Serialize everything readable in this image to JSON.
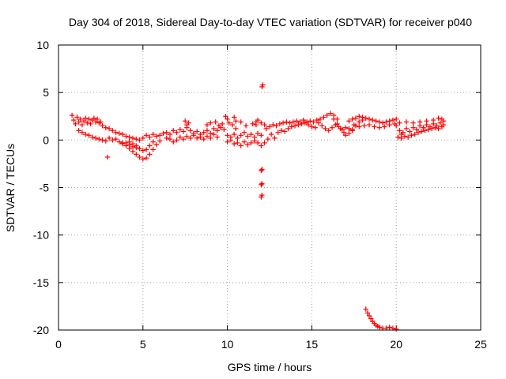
{
  "chart_data": {
    "type": "scatter",
    "title": "Day 304 of 2018, Sidereal Day-to-day VTEC variation (SDTVAR) for receiver p040",
    "xlabel": "GPS time / hours",
    "ylabel": "SDTVAR / TECUs",
    "xlim": [
      0,
      25
    ],
    "ylim": [
      -20,
      10
    ],
    "xticks": [
      0,
      5,
      10,
      15,
      20,
      25
    ],
    "yticks": [
      10,
      5,
      0,
      -5,
      -10,
      -15,
      -20
    ],
    "grid": true,
    "marker": "+",
    "color": "#ff0000",
    "series": [
      {
        "name": "p040",
        "points": [
          [
            0.8,
            2.6
          ],
          [
            0.9,
            2.1
          ],
          [
            1.0,
            1.7
          ],
          [
            1.1,
            2.4
          ],
          [
            1.2,
            1.9
          ],
          [
            1.3,
            2.2
          ],
          [
            1.4,
            1.6
          ],
          [
            1.5,
            2.0
          ],
          [
            1.6,
            2.3
          ],
          [
            1.7,
            1.8
          ],
          [
            1.8,
            2.2
          ],
          [
            1.9,
            1.7
          ],
          [
            2.0,
            2.1
          ],
          [
            2.1,
            2.3
          ],
          [
            2.2,
            1.9
          ],
          [
            2.3,
            2.2
          ],
          [
            2.4,
            1.8
          ],
          [
            2.5,
            1.9
          ],
          [
            2.6,
            1.5
          ],
          [
            1.2,
            1.0
          ],
          [
            1.4,
            0.8
          ],
          [
            1.6,
            0.6
          ],
          [
            1.8,
            0.5
          ],
          [
            2.0,
            0.3
          ],
          [
            2.2,
            0.2
          ],
          [
            2.4,
            0.1
          ],
          [
            2.6,
            0.0
          ],
          [
            2.8,
            -0.1
          ],
          [
            3.0,
            0.2
          ],
          [
            3.2,
            0.0
          ],
          [
            3.4,
            0.1
          ],
          [
            3.6,
            -0.2
          ],
          [
            3.8,
            -0.4
          ],
          [
            4.0,
            -0.3
          ],
          [
            4.2,
            -0.5
          ],
          [
            4.4,
            -0.7
          ],
          [
            4.6,
            -0.8
          ],
          [
            2.8,
            1.3
          ],
          [
            3.0,
            1.2
          ],
          [
            3.2,
            1.0
          ],
          [
            3.4,
            0.8
          ],
          [
            3.6,
            0.7
          ],
          [
            3.8,
            0.6
          ],
          [
            4.0,
            0.4
          ],
          [
            4.2,
            0.3
          ],
          [
            4.4,
            0.2
          ],
          [
            4.6,
            0.1
          ],
          [
            4.8,
            0.0
          ],
          [
            5.0,
            0.2
          ],
          [
            3.8,
            -0.3
          ],
          [
            4.0,
            -0.6
          ],
          [
            4.2,
            -0.9
          ],
          [
            4.4,
            -1.2
          ],
          [
            4.6,
            -1.5
          ],
          [
            4.8,
            -1.8
          ],
          [
            5.0,
            -2.0
          ],
          [
            5.2,
            -1.9
          ],
          [
            5.4,
            -1.5
          ],
          [
            5.6,
            -1.0
          ],
          [
            5.8,
            -0.5
          ],
          [
            6.0,
            -0.1
          ],
          [
            4.2,
            -0.2
          ],
          [
            4.4,
            -0.4
          ],
          [
            4.6,
            -0.6
          ],
          [
            4.8,
            -0.9
          ],
          [
            5.0,
            -1.1
          ],
          [
            5.2,
            -1.0
          ],
          [
            5.4,
            -0.6
          ],
          [
            5.6,
            -0.2
          ],
          [
            2.9,
            -1.8
          ],
          [
            5.2,
            0.5
          ],
          [
            5.4,
            0.3
          ],
          [
            5.6,
            0.6
          ],
          [
            5.8,
            0.4
          ],
          [
            6.0,
            0.5
          ],
          [
            6.2,
            0.7
          ],
          [
            6.4,
            0.8
          ],
          [
            6.6,
            0.6
          ],
          [
            6.8,
            1.0
          ],
          [
            7.0,
            0.8
          ],
          [
            7.2,
            1.1
          ],
          [
            7.4,
            0.9
          ],
          [
            7.6,
            1.3
          ],
          [
            7.8,
            1.0
          ],
          [
            8.0,
            0.7
          ],
          [
            8.2,
            0.9
          ],
          [
            8.4,
            0.6
          ],
          [
            8.6,
            0.8
          ],
          [
            8.8,
            1.0
          ],
          [
            9.0,
            0.7
          ],
          [
            9.2,
            1.2
          ],
          [
            9.4,
            1.0
          ],
          [
            9.6,
            1.3
          ],
          [
            9.8,
            1.1
          ],
          [
            6.4,
            0.2
          ],
          [
            6.6,
            0.1
          ],
          [
            6.8,
            -0.2
          ],
          [
            7.0,
            0.0
          ],
          [
            7.2,
            0.3
          ],
          [
            7.4,
            0.1
          ],
          [
            7.6,
            0.4
          ],
          [
            7.8,
            0.2
          ],
          [
            8.0,
            0.5
          ],
          [
            8.2,
            0.2
          ],
          [
            8.4,
            0.3
          ],
          [
            8.6,
            0.1
          ],
          [
            8.8,
            0.4
          ],
          [
            9.0,
            0.2
          ],
          [
            9.2,
            0.6
          ],
          [
            9.4,
            0.3
          ],
          [
            7.5,
            2.0
          ],
          [
            7.6,
            1.6
          ],
          [
            7.7,
            1.8
          ],
          [
            8.8,
            1.6
          ],
          [
            9.0,
            1.8
          ],
          [
            9.3,
            1.9
          ],
          [
            9.5,
            1.5
          ],
          [
            9.7,
            1.7
          ],
          [
            10.0,
            0.5
          ],
          [
            10.2,
            0.3
          ],
          [
            10.4,
            0.6
          ],
          [
            10.6,
            0.2
          ],
          [
            10.8,
            0.5
          ],
          [
            11.0,
            0.8
          ],
          [
            11.2,
            0.4
          ],
          [
            11.4,
            0.6
          ],
          [
            11.6,
            0.3
          ],
          [
            11.8,
            0.7
          ],
          [
            12.0,
            0.5
          ],
          [
            10.0,
            -0.2
          ],
          [
            10.2,
            0.0
          ],
          [
            10.4,
            -0.4
          ],
          [
            10.6,
            -0.3
          ],
          [
            10.8,
            -0.6
          ],
          [
            11.0,
            -0.2
          ],
          [
            11.2,
            -0.5
          ],
          [
            11.4,
            -0.3
          ],
          [
            11.6,
            -0.1
          ],
          [
            11.8,
            -0.3
          ],
          [
            12.0,
            -0.6
          ],
          [
            9.9,
            2.5
          ],
          [
            10.0,
            2.2
          ],
          [
            10.1,
            1.8
          ],
          [
            10.3,
            1.6
          ],
          [
            10.5,
            1.2
          ],
          [
            10.8,
            1.9
          ],
          [
            11.1,
            1.5
          ],
          [
            11.5,
            1.7
          ],
          [
            11.7,
            1.6
          ],
          [
            12.0,
            1.8
          ],
          [
            12.2,
            1.6
          ],
          [
            10.4,
            2.4
          ],
          [
            10.5,
            2.0
          ],
          [
            11.7,
            1.9
          ],
          [
            11.8,
            2.1
          ],
          [
            12.1,
            5.8
          ],
          [
            12.05,
            5.6
          ],
          [
            12.0,
            -3.2
          ],
          [
            12.05,
            -3.1
          ],
          [
            12.0,
            -4.7
          ],
          [
            12.05,
            -4.6
          ],
          [
            12.0,
            -6.0
          ],
          [
            12.05,
            -5.8
          ],
          [
            12.2,
            -0.3
          ],
          [
            12.4,
            0.1
          ],
          [
            12.6,
            0.6
          ],
          [
            12.8,
            0.2
          ],
          [
            13.0,
            0.8
          ],
          [
            13.2,
            1.0
          ],
          [
            13.4,
            0.9
          ],
          [
            13.6,
            1.2
          ],
          [
            13.8,
            1.4
          ],
          [
            14.0,
            1.5
          ],
          [
            14.2,
            1.6
          ],
          [
            14.4,
            1.7
          ],
          [
            14.6,
            1.8
          ],
          [
            14.8,
            1.6
          ],
          [
            15.0,
            1.4
          ],
          [
            15.2,
            1.3
          ],
          [
            12.3,
            1.2
          ],
          [
            12.5,
            1.4
          ],
          [
            12.7,
            1.6
          ],
          [
            12.9,
            1.5
          ],
          [
            13.1,
            1.7
          ],
          [
            13.3,
            1.8
          ],
          [
            13.5,
            1.9
          ],
          [
            13.7,
            1.8
          ],
          [
            13.9,
            1.9
          ],
          [
            14.1,
            2.0
          ],
          [
            14.3,
            1.9
          ],
          [
            14.5,
            2.1
          ],
          [
            14.7,
            1.9
          ],
          [
            14.9,
            2.0
          ],
          [
            15.1,
            1.9
          ],
          [
            15.3,
            2.1
          ],
          [
            15.5,
            2.2
          ],
          [
            15.7,
            2.4
          ],
          [
            15.9,
            2.6
          ],
          [
            16.1,
            2.8
          ],
          [
            16.3,
            2.6
          ],
          [
            16.5,
            2.2
          ],
          [
            15.4,
            1.8
          ],
          [
            15.6,
            1.5
          ],
          [
            15.8,
            1.2
          ],
          [
            16.0,
            1.0
          ],
          [
            16.2,
            1.3
          ],
          [
            16.4,
            1.6
          ],
          [
            16.6,
            1.4
          ],
          [
            16.8,
            1.1
          ],
          [
            17.0,
            1.3
          ],
          [
            17.2,
            1.2
          ],
          [
            17.4,
            1.0
          ],
          [
            16.3,
            2.2
          ],
          [
            16.5,
            1.7
          ],
          [
            16.7,
            1.2
          ],
          [
            16.9,
            0.8
          ],
          [
            17.0,
            0.5
          ],
          [
            17.2,
            0.7
          ],
          [
            17.4,
            1.1
          ],
          [
            17.6,
            1.5
          ],
          [
            17.8,
            1.9
          ],
          [
            18.0,
            2.1
          ],
          [
            17.2,
            2.0
          ],
          [
            17.4,
            2.2
          ],
          [
            17.6,
            2.3
          ],
          [
            17.8,
            2.5
          ],
          [
            18.0,
            2.4
          ],
          [
            18.2,
            2.3
          ],
          [
            18.4,
            2.2
          ],
          [
            18.6,
            2.1
          ],
          [
            18.8,
            2.0
          ],
          [
            19.0,
            1.9
          ],
          [
            19.2,
            1.8
          ],
          [
            19.4,
            1.9
          ],
          [
            19.6,
            2.0
          ],
          [
            19.8,
            2.1
          ],
          [
            20.0,
            2.2
          ],
          [
            17.5,
            1.6
          ],
          [
            17.8,
            1.4
          ],
          [
            18.1,
            1.5
          ],
          [
            18.4,
            1.6
          ],
          [
            18.7,
            1.4
          ],
          [
            19.0,
            1.3
          ],
          [
            19.3,
            1.4
          ],
          [
            19.6,
            1.6
          ],
          [
            19.9,
            1.7
          ],
          [
            18.2,
            -17.8
          ],
          [
            18.3,
            -18.2
          ],
          [
            18.4,
            -18.5
          ],
          [
            18.5,
            -18.8
          ],
          [
            18.6,
            -19.1
          ],
          [
            18.7,
            -19.3
          ],
          [
            18.8,
            -19.5
          ],
          [
            18.9,
            -19.6
          ],
          [
            19.0,
            -19.7
          ],
          [
            19.2,
            -19.8
          ],
          [
            19.4,
            -19.8
          ],
          [
            19.6,
            -19.7
          ],
          [
            19.8,
            -19.8
          ],
          [
            20.0,
            -19.9
          ],
          [
            20.0,
            1.5
          ],
          [
            20.2,
            1.0
          ],
          [
            20.3,
            0.6
          ],
          [
            20.4,
            0.8
          ],
          [
            20.6,
            1.2
          ],
          [
            20.8,
            0.9
          ],
          [
            21.0,
            1.3
          ],
          [
            21.2,
            1.1
          ],
          [
            21.4,
            1.5
          ],
          [
            21.6,
            1.3
          ],
          [
            21.8,
            1.6
          ],
          [
            22.0,
            1.4
          ],
          [
            22.2,
            1.7
          ],
          [
            22.4,
            1.5
          ],
          [
            22.6,
            1.8
          ],
          [
            22.8,
            1.6
          ],
          [
            20.1,
            0.3
          ],
          [
            20.3,
            0.2
          ],
          [
            20.5,
            0.4
          ],
          [
            20.7,
            0.3
          ],
          [
            20.9,
            0.5
          ],
          [
            21.1,
            0.6
          ],
          [
            21.3,
            0.8
          ],
          [
            21.5,
            0.9
          ],
          [
            21.7,
            1.0
          ],
          [
            21.9,
            1.1
          ],
          [
            22.1,
            1.2
          ],
          [
            22.3,
            1.3
          ],
          [
            22.5,
            1.2
          ],
          [
            22.7,
            1.4
          ],
          [
            20.2,
            1.8
          ],
          [
            20.6,
            1.9
          ],
          [
            21.0,
            1.8
          ],
          [
            21.4,
            1.9
          ],
          [
            21.8,
            2.0
          ],
          [
            22.2,
            2.1
          ],
          [
            22.5,
            2.3
          ],
          [
            22.7,
            2.2
          ],
          [
            22.8,
            2.0
          ]
        ]
      }
    ]
  }
}
